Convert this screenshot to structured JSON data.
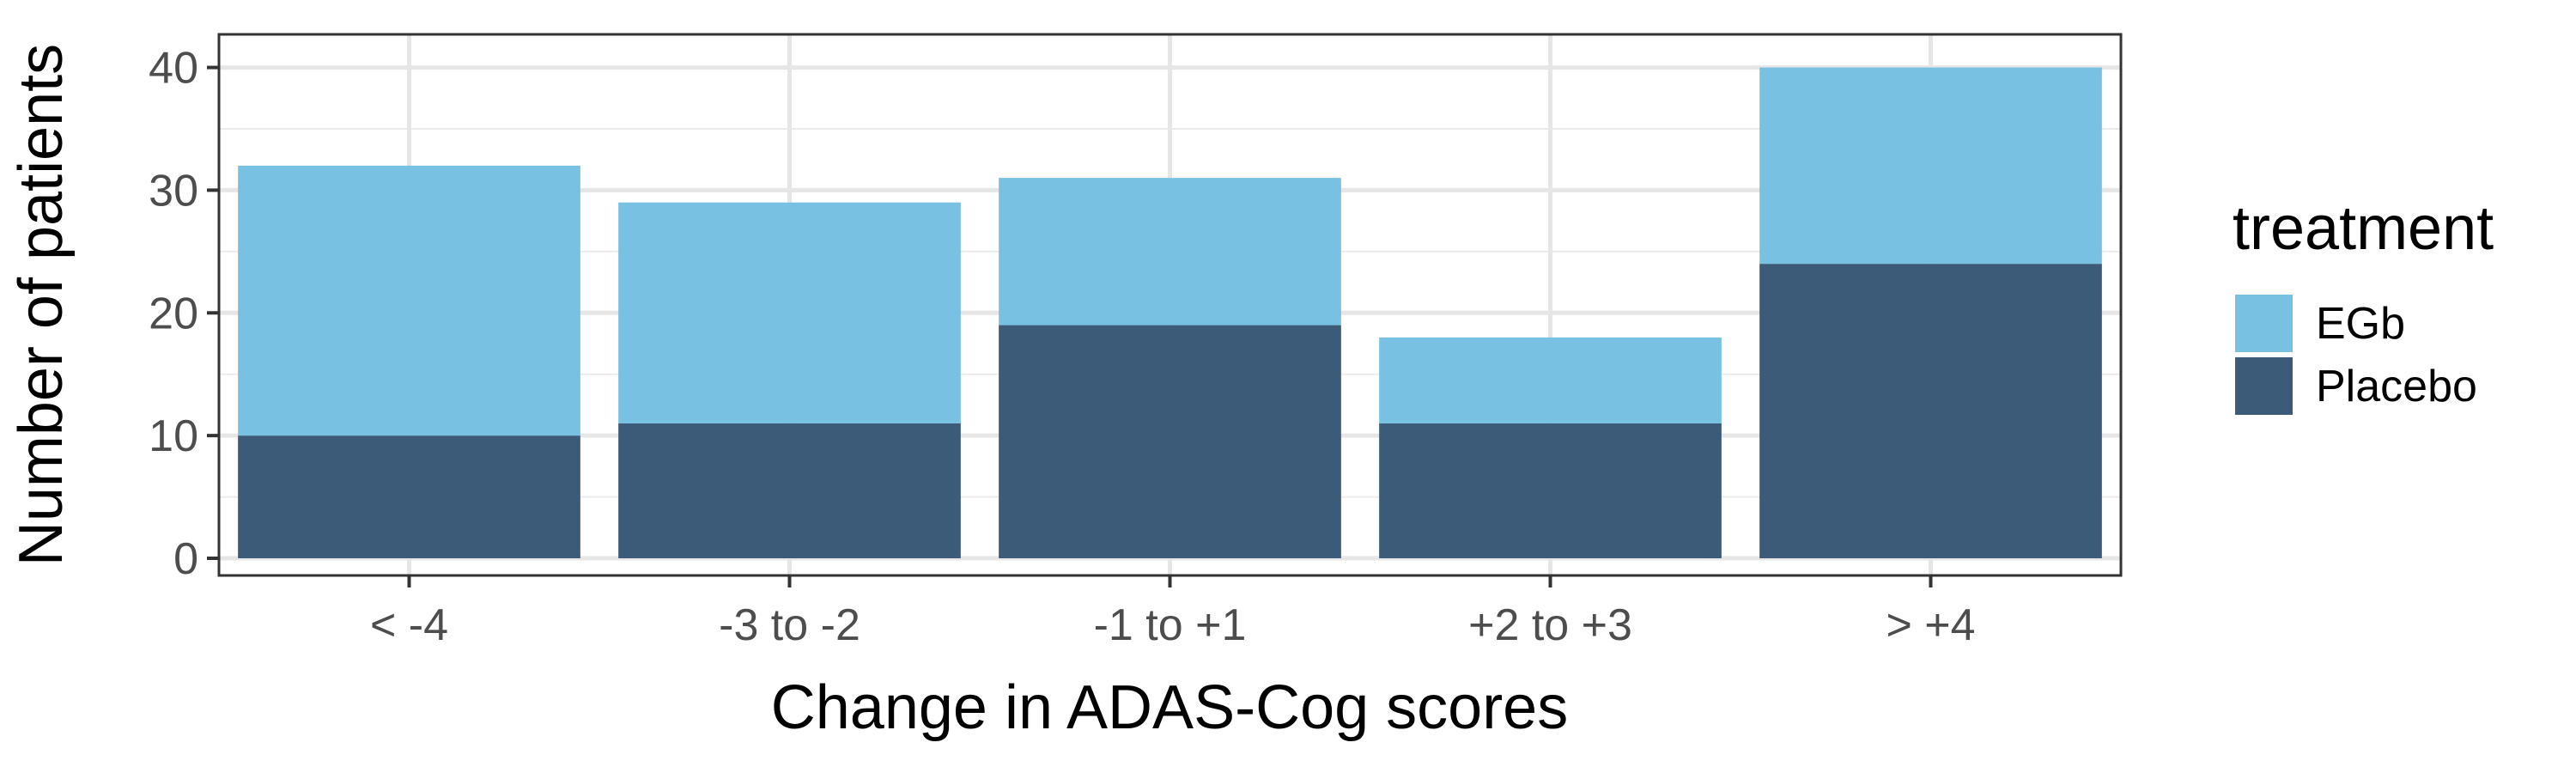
{
  "chart_data": {
    "type": "bar",
    "stacked": true,
    "title": "",
    "xlabel": "Change in ADAS-Cog scores",
    "ylabel": "Number of patients",
    "categories": [
      "< -4",
      "-3 to -2",
      "-1 to +1",
      "+2 to +3",
      "> +4"
    ],
    "series": [
      {
        "name": "Placebo",
        "values": [
          10,
          11,
          19,
          11,
          24
        ],
        "color": "#3b5b79"
      },
      {
        "name": "EGb",
        "values": [
          22,
          18,
          12,
          7,
          16
        ],
        "color": "#78c1e3"
      }
    ],
    "ylim": [
      0,
      42
    ],
    "yticks": [
      0,
      10,
      20,
      30,
      40
    ],
    "grid": true,
    "legend": {
      "title": "treatment",
      "placement": "right",
      "entries": [
        "EGb",
        "Placebo"
      ]
    }
  }
}
